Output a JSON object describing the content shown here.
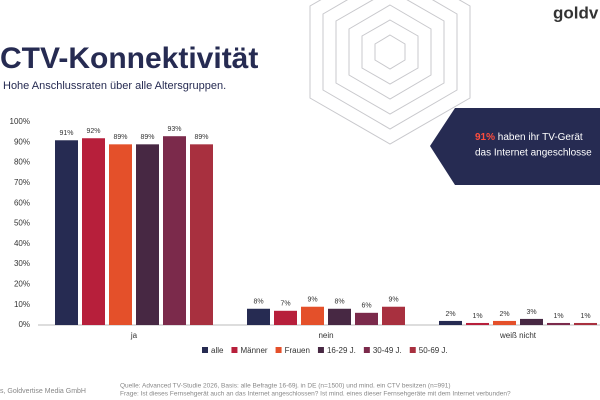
{
  "logo": "goldv",
  "title": "CTV-Konnektivität",
  "subtitle": "Hohe Anschlussraten über alle Altersgruppen.",
  "callout": {
    "highlight": "91%",
    "line1": " haben ihr TV-Gerät",
    "line2": "das Internet angeschlosse"
  },
  "footer": {
    "left": "s, Goldvertise Media GmbH",
    "source": "Quelle: Advanced TV-Studie 2026, Basis: alle Befragte 16-69j. in DE (n=1500) und mind. ein CTV besitzen (n=991)",
    "question": "Frage: Ist dieses Fernsehgerät auch an das Internet angeschlossen? Ist mind. eines dieser Fernsehgeräte mit dem Internet verbunden?"
  },
  "chart_data": {
    "type": "bar",
    "categories": [
      "ja",
      "nein",
      "weiß nicht"
    ],
    "series": [
      {
        "name": "alle",
        "color": "#262b52",
        "values": [
          91,
          8,
          2
        ],
        "value_labels": [
          "91%",
          "8%",
          "2%"
        ]
      },
      {
        "name": "Männer",
        "color": "#b71f3b",
        "values": [
          92,
          7,
          1
        ],
        "value_labels": [
          "92%",
          "7%",
          "1%"
        ]
      },
      {
        "name": "Frauen",
        "color": "#e4502a",
        "values": [
          89,
          9,
          2
        ],
        "value_labels": [
          "89%",
          "9%",
          "2%"
        ]
      },
      {
        "name": "16-29 J.",
        "color": "#472843",
        "values": [
          89,
          8,
          3
        ],
        "value_labels": [
          "89%",
          "8%",
          "3%"
        ]
      },
      {
        "name": "30-49 J.",
        "color": "#7b2a4b",
        "values": [
          93,
          6,
          1
        ],
        "value_labels": [
          "93%",
          "6%",
          "1%"
        ]
      },
      {
        "name": "50-69 J.",
        "color": "#a8303f",
        "values": [
          89,
          9,
          1
        ],
        "value_labels": [
          "89%",
          "9%",
          "1%"
        ]
      }
    ],
    "ylim": [
      0,
      100
    ],
    "yticks": [
      {
        "value": 0,
        "label": "0%"
      },
      {
        "value": 10,
        "label": "10%"
      },
      {
        "value": 20,
        "label": "20%"
      },
      {
        "value": 30,
        "label": "30%"
      },
      {
        "value": 40,
        "label": "40%"
      },
      {
        "value": 50,
        "label": "50%"
      },
      {
        "value": 60,
        "label": "60%"
      },
      {
        "value": 70,
        "label": "70%"
      },
      {
        "value": 80,
        "label": "80%"
      },
      {
        "value": 90,
        "label": "90%"
      },
      {
        "value": 100,
        "label": "100%"
      }
    ],
    "grid": false
  }
}
